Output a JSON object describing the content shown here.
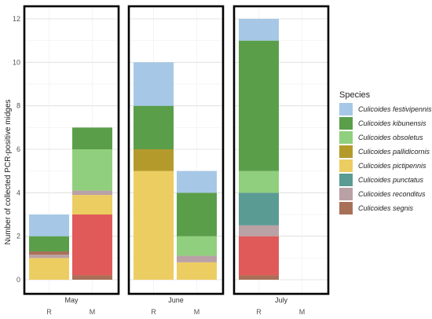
{
  "chart_data": {
    "type": "bar",
    "stacked": true,
    "ylabel": "Number of collected PCR-positive midges",
    "ylim": [
      0,
      12.4
    ],
    "yticks": [
      0,
      2,
      4,
      6,
      8,
      10,
      12
    ],
    "grid": true,
    "legend_title": "Species",
    "legend_position": "right",
    "species": [
      {
        "name": "Culicoides festivipennis",
        "color": "#a6c8e6"
      },
      {
        "name": "Culicoides kibunensis",
        "color": "#5a9e4a"
      },
      {
        "name": "Culicoides obsoletus",
        "color": "#90cf7d"
      },
      {
        "name": "Culicoides pallidicornis",
        "color": "#b49a2a"
      },
      {
        "name": "Culicoides pictipennis",
        "color": "#eccd62"
      },
      {
        "name": "Culicoides punctatus",
        "color": "#5a9b93"
      },
      {
        "name": "Culicoides reconditus",
        "color": "#b9a1a5"
      },
      {
        "name": "Culicoides segnis",
        "color": "#a97058"
      }
    ],
    "facets": [
      {
        "month": "May",
        "bars": [
          {
            "label": "R",
            "segments": [
              {
                "species": "Culicoides pictipennis",
                "value": 1
              },
              {
                "species": "Culicoides reconditus",
                "value": 0.15
              },
              {
                "species": "Culicoides segnis",
                "value": 0.15
              },
              {
                "species": "Culicoides kibunensis",
                "value": 0.7
              },
              {
                "species": "Culicoides festivipennis",
                "value": 1
              }
            ]
          },
          {
            "label": "M",
            "segments": [
              {
                "species": "Culicoides segnis",
                "value": 0.2
              },
              {
                "species": "Culicoides segnis",
                "value": 2.8,
                "color": "#e05a5a"
              },
              {
                "species": "Culicoides pictipennis",
                "value": 0.9
              },
              {
                "species": "Culicoides reconditus",
                "value": 0.2
              },
              {
                "species": "Culicoides obsoletus",
                "value": 1.9
              },
              {
                "species": "Culicoides kibunensis",
                "value": 1
              }
            ]
          }
        ]
      },
      {
        "month": "June",
        "bars": [
          {
            "label": "R",
            "segments": [
              {
                "species": "Culicoides pictipennis",
                "value": 5
              },
              {
                "species": "Culicoides pallidicornis",
                "value": 1
              },
              {
                "species": "Culicoides kibunensis",
                "value": 2
              },
              {
                "species": "Culicoides festivipennis",
                "value": 2
              }
            ]
          },
          {
            "label": "M",
            "segments": [
              {
                "species": "Culicoides pictipennis",
                "value": 0.8
              },
              {
                "species": "Culicoides reconditus",
                "value": 0.3
              },
              {
                "species": "Culicoides obsoletus",
                "value": 0.9
              },
              {
                "species": "Culicoides kibunensis",
                "value": 2
              },
              {
                "species": "Culicoides festivipennis",
                "value": 1
              }
            ]
          }
        ]
      },
      {
        "month": "July",
        "bars": [
          {
            "label": "R",
            "segments": [
              {
                "species": "Culicoides segnis",
                "value": 0.2
              },
              {
                "species": "Culicoides segnis",
                "value": 1.8,
                "color": "#e05a5a"
              },
              {
                "species": "Culicoides reconditus",
                "value": 0.5
              },
              {
                "species": "Culicoides punctatus",
                "value": 0.5
              },
              {
                "species": "Culicoides punctatus",
                "value": 1
              },
              {
                "species": "Culicoides obsoletus",
                "value": 1
              },
              {
                "species": "Culicoides kibunensis",
                "value": 6
              },
              {
                "species": "Culicoides festivipennis",
                "value": 1
              }
            ]
          },
          {
            "label": "M",
            "segments": []
          }
        ]
      }
    ]
  }
}
